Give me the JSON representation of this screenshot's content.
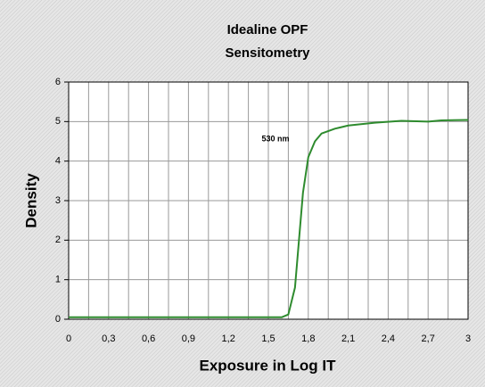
{
  "chart_data": {
    "type": "line",
    "title": [
      "Idealine OPF",
      "Sensitometry"
    ],
    "x_label": "Exposure in Log IT",
    "y_label": "Density",
    "annotation": "530 nm",
    "x": [
      0,
      0.3,
      0.6,
      0.9,
      1.2,
      1.5,
      1.6,
      1.65,
      1.7,
      1.73,
      1.76,
      1.8,
      1.85,
      1.9,
      2.0,
      2.1,
      2.3,
      2.5,
      2.7,
      2.8,
      3.0
    ],
    "series": [
      {
        "name": "530 nm",
        "color": "#2e8b2e",
        "values": [
          0.05,
          0.05,
          0.05,
          0.05,
          0.05,
          0.05,
          0.05,
          0.12,
          0.8,
          2.0,
          3.2,
          4.1,
          4.5,
          4.7,
          4.82,
          4.9,
          4.97,
          5.02,
          5.0,
          5.03,
          5.04
        ]
      }
    ],
    "xlim": [
      0,
      3
    ],
    "ylim": [
      0,
      6
    ],
    "xticks": [
      0,
      {
        "value": 0.3,
        "label": "0,3"
      },
      {
        "value": 0.6,
        "label": "0,6"
      },
      {
        "value": 0.9,
        "label": "0,9"
      },
      {
        "value": 1.2,
        "label": "1,2"
      },
      {
        "value": 1.5,
        "label": "1,5"
      },
      {
        "value": 1.8,
        "label": "1,8"
      },
      {
        "value": 2.1,
        "label": "2,1"
      },
      {
        "value": 2.4,
        "label": "2,4"
      },
      {
        "value": 2.7,
        "label": "2,7"
      },
      3
    ],
    "xminorticks": [
      0.15,
      0.45,
      0.75,
      1.05,
      1.35,
      1.65,
      1.95,
      2.25,
      2.55,
      2.85
    ],
    "yticks": [
      0,
      1,
      2,
      3,
      4,
      5,
      6
    ],
    "grid": true
  }
}
